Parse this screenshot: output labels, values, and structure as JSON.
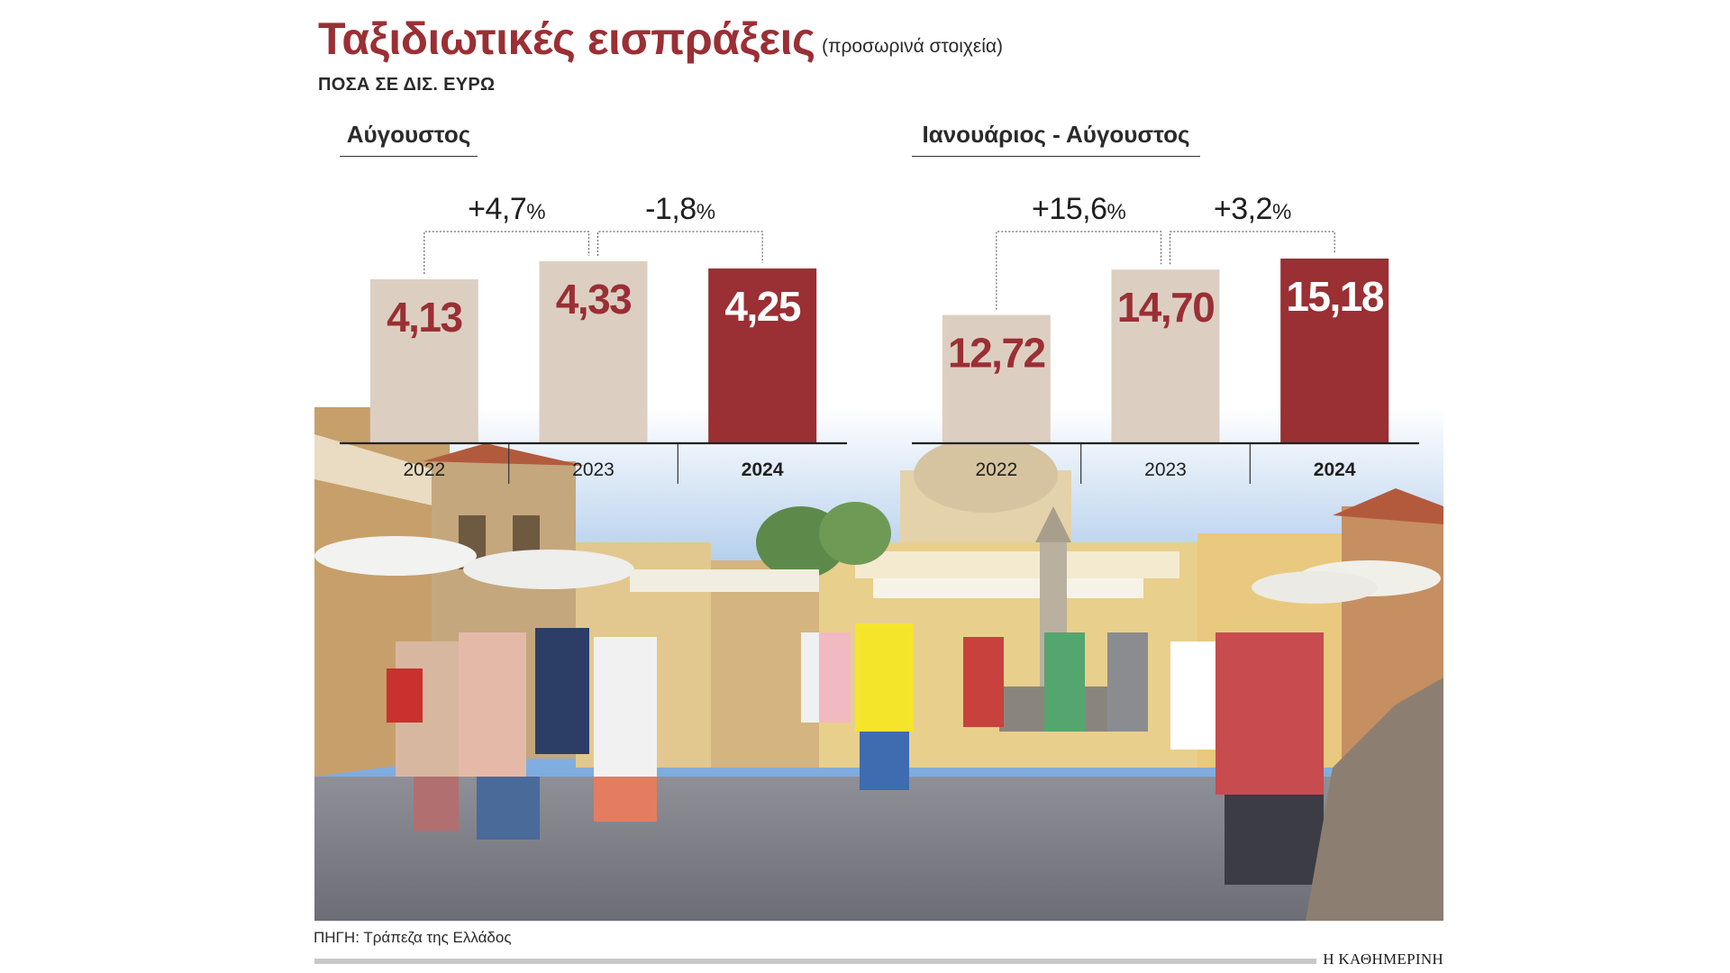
{
  "header": {
    "title": "Ταξιδιωτικές εισπράξεις",
    "subtitle": "(προσωρινά στοιχεία)",
    "units": "ΠΟΣΑ ΣΕ ΔΙΣ. ΕΥΡΩ"
  },
  "chart_data": [
    {
      "type": "bar",
      "title": "Αύγουστος",
      "categories": [
        "2022",
        "2023",
        "2024"
      ],
      "values": [
        4.13,
        4.33,
        4.25
      ],
      "value_labels": [
        "4,13",
        "4,33",
        "4,25"
      ],
      "changes": [
        "+4,7%",
        "-1,8%"
      ],
      "highlight_category": "2024",
      "colors": {
        "base": "#dccfc2",
        "highlight": "#9a2f34",
        "label": "#9a2f34",
        "highlight_label": "#ffffff"
      }
    },
    {
      "type": "bar",
      "title": "Ιανουάριος - Αύγουστος",
      "categories": [
        "2022",
        "2023",
        "2024"
      ],
      "values": [
        12.72,
        14.7,
        15.18
      ],
      "value_labels": [
        "12,72",
        "14,70",
        "15,18"
      ],
      "changes": [
        "+15,6%",
        "+3,2%"
      ],
      "highlight_category": "2024",
      "colors": {
        "base": "#dccfc2",
        "highlight": "#9a2f34",
        "label": "#9a2f34",
        "highlight_label": "#ffffff"
      }
    }
  ],
  "footer": {
    "source": "ΠΗΓΗ: Τράπεζα της Ελλάδος",
    "brand": "Η ΚΑΘΗΜΕΡΙΝΗ"
  }
}
